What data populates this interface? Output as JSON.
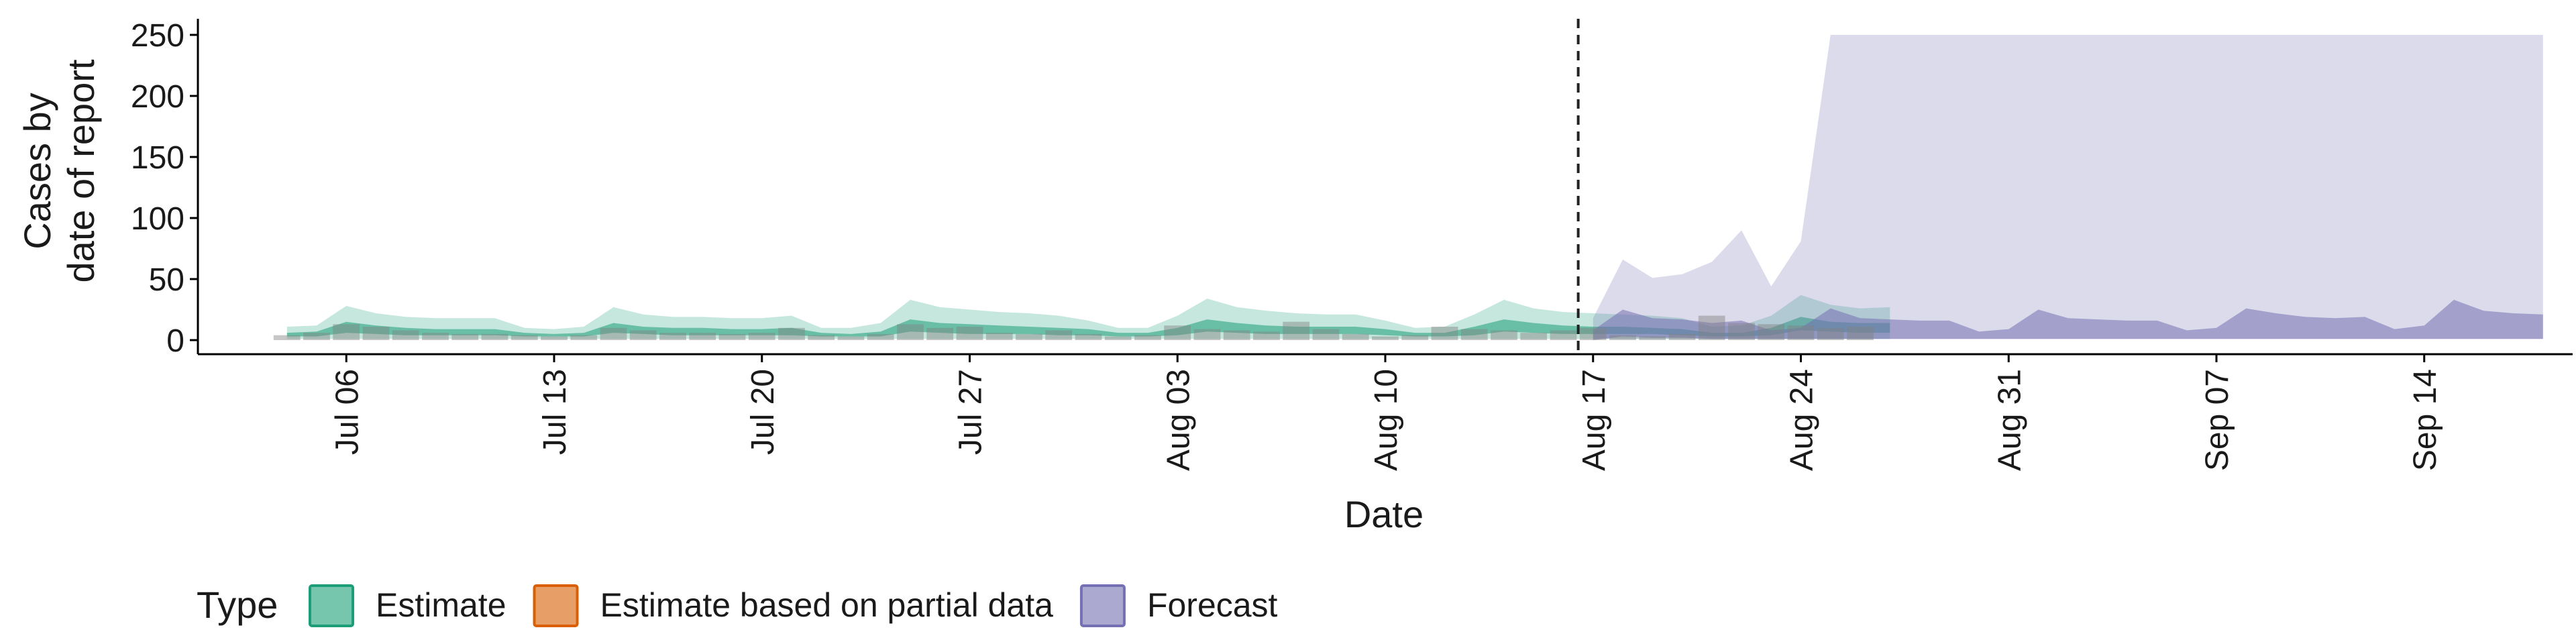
{
  "chart_data": {
    "type": "area",
    "xlabel": "Date",
    "ylabel_lines": [
      "Cases by",
      "date of report"
    ],
    "ylim": [
      0,
      250
    ],
    "yticks": [
      0,
      50,
      100,
      150,
      200,
      250
    ],
    "x_domain": [
      "2020-07-01",
      "2020-09-19"
    ],
    "xticks": [
      {
        "date": "2020-07-06",
        "label": "Jul 06"
      },
      {
        "date": "2020-07-13",
        "label": "Jul 13"
      },
      {
        "date": "2020-07-20",
        "label": "Jul 20"
      },
      {
        "date": "2020-07-27",
        "label": "Jul 27"
      },
      {
        "date": "2020-08-03",
        "label": "Aug 03"
      },
      {
        "date": "2020-08-10",
        "label": "Aug 10"
      },
      {
        "date": "2020-08-17",
        "label": "Aug 17"
      },
      {
        "date": "2020-08-24",
        "label": "Aug 24"
      },
      {
        "date": "2020-08-31",
        "label": "Aug 31"
      },
      {
        "date": "2020-09-07",
        "label": "Sep 07"
      },
      {
        "date": "2020-09-14",
        "label": "Sep 14"
      }
    ],
    "forecast_date": "2020-08-16",
    "grid": false,
    "legend": {
      "title": "Type",
      "position": "bottom",
      "entries": [
        {
          "label": "Estimate",
          "color": "#1b9e77"
        },
        {
          "label": "Estimate based on partial data",
          "color": "#d95f02"
        },
        {
          "label": "Forecast",
          "color": "#7570b3"
        }
      ]
    },
    "observed_cases": {
      "start": "2020-07-04",
      "values": [
        4,
        6,
        13,
        11,
        8,
        6,
        5,
        5,
        4,
        3,
        4,
        10,
        8,
        6,
        6,
        5,
        6,
        10,
        4,
        3,
        5,
        13,
        10,
        11,
        6,
        5,
        8,
        5,
        3,
        4,
        12,
        9,
        8,
        7,
        15,
        9,
        5,
        3,
        4,
        11,
        9,
        8,
        6,
        8,
        10,
        4,
        3,
        5,
        20,
        14,
        13,
        12,
        10,
        11
      ]
    },
    "series": [
      {
        "name": "Estimate",
        "color": "#1b9e77",
        "start": "2020-07-04",
        "outer_low": [
          1,
          1,
          1,
          1,
          1,
          1,
          1,
          1,
          1,
          1,
          1,
          1,
          1,
          1,
          1,
          1,
          1,
          1,
          1,
          1,
          1,
          1,
          1,
          1,
          1,
          1,
          1,
          1,
          1,
          1,
          1,
          1,
          1,
          1,
          1,
          1,
          1,
          1,
          1,
          1,
          1,
          1,
          1,
          1,
          1,
          1,
          1,
          1,
          1,
          1,
          1,
          1,
          1,
          1,
          1
        ],
        "outer_high": [
          11,
          12,
          28,
          22,
          19,
          18,
          18,
          18,
          10,
          9,
          11,
          27,
          21,
          19,
          19,
          18,
          18,
          20,
          10,
          10,
          14,
          33,
          27,
          25,
          23,
          22,
          20,
          16,
          10,
          10,
          20,
          34,
          27,
          24,
          22,
          21,
          21,
          16,
          10,
          11,
          21,
          33,
          26,
          23,
          22,
          21,
          20,
          18,
          11,
          12,
          20,
          37,
          29,
          26,
          27
        ],
        "inner_low": [
          3,
          3,
          6,
          5,
          4,
          4,
          4,
          4,
          3,
          3,
          3,
          6,
          5,
          4,
          4,
          4,
          4,
          4,
          3,
          3,
          3,
          7,
          6,
          5,
          5,
          5,
          4,
          4,
          3,
          3,
          4,
          7,
          6,
          5,
          5,
          5,
          5,
          4,
          3,
          3,
          4,
          7,
          6,
          5,
          5,
          5,
          5,
          4,
          3,
          3,
          4,
          8,
          7,
          6,
          6
        ],
        "inner_high": [
          6,
          7,
          15,
          12,
          10,
          9,
          9,
          9,
          6,
          5,
          6,
          14,
          11,
          10,
          10,
          9,
          9,
          10,
          6,
          5,
          7,
          17,
          14,
          13,
          12,
          11,
          10,
          9,
          6,
          6,
          10,
          17,
          14,
          12,
          11,
          11,
          11,
          9,
          6,
          6,
          11,
          17,
          14,
          12,
          11,
          11,
          10,
          9,
          6,
          6,
          10,
          19,
          15,
          14,
          14
        ]
      },
      {
        "name": "Forecast",
        "color": "#7570b3",
        "start": "2020-08-17",
        "outer_low": [
          1,
          1,
          1,
          1,
          1,
          1,
          1,
          1,
          1,
          1,
          1,
          1,
          1,
          1,
          1,
          1,
          1,
          1,
          1,
          1,
          1,
          1,
          1,
          1,
          1,
          1,
          1,
          1,
          1,
          1,
          1,
          1,
          1
        ],
        "outer_high": [
          18,
          66,
          51,
          54,
          64,
          90,
          44,
          81,
          250,
          250,
          250,
          250,
          250,
          250,
          250,
          250,
          250,
          250,
          250,
          250,
          250,
          250,
          250,
          250,
          250,
          250,
          250,
          250,
          250,
          250,
          250,
          250,
          250
        ],
        "inner_low": [
          0,
          3,
          2,
          2,
          1,
          1,
          1,
          1,
          1,
          1,
          1,
          1,
          1,
          1,
          1,
          1,
          1,
          1,
          1,
          1,
          1,
          1,
          1,
          1,
          1,
          1,
          1,
          1,
          1,
          1,
          1,
          1,
          1
        ],
        "inner_high": [
          8,
          25,
          18,
          17,
          14,
          16,
          8,
          10,
          26,
          18,
          17,
          16,
          16,
          7,
          9,
          25,
          18,
          17,
          16,
          16,
          8,
          10,
          26,
          22,
          19,
          18,
          19,
          9,
          12,
          33,
          24,
          22,
          21
        ]
      }
    ]
  }
}
